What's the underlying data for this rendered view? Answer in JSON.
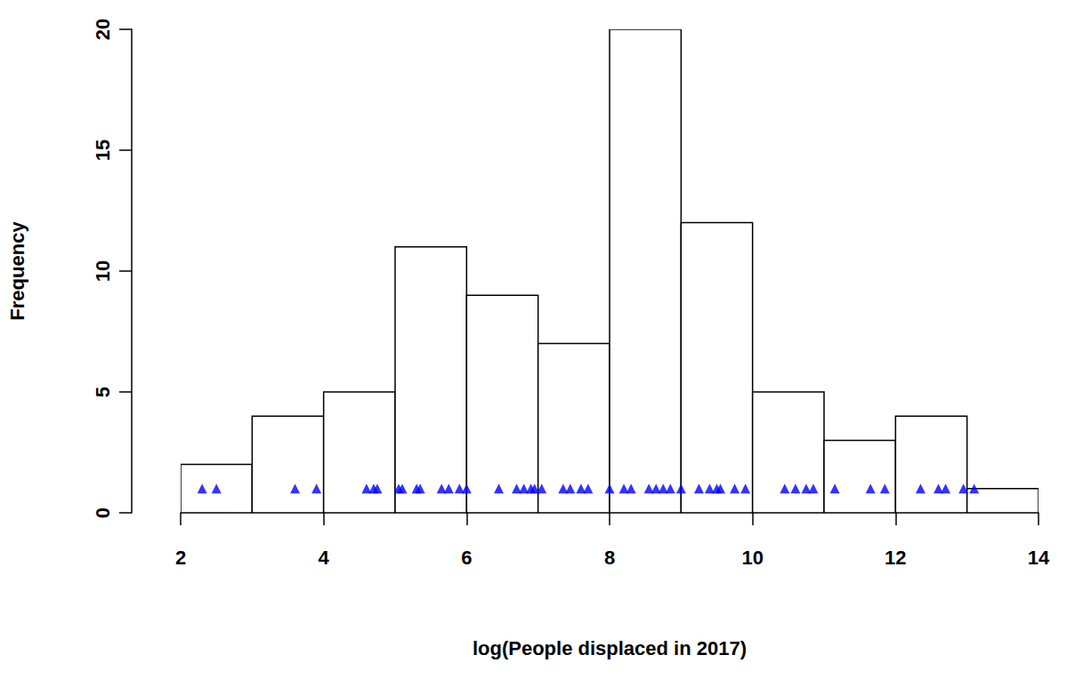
{
  "chart_data": {
    "type": "histogram",
    "x_label": "log(People displaced in 2017)",
    "y_label": "Frequency",
    "bins": [
      2,
      3,
      4,
      5,
      6,
      7,
      8,
      9,
      10,
      11,
      12,
      13,
      14
    ],
    "counts": [
      2,
      4,
      5,
      11,
      9,
      7,
      20,
      12,
      5,
      3,
      4,
      1
    ],
    "color": "#ffffff",
    "xlim": [
      2,
      14
    ],
    "xticks": [
      2,
      4,
      6,
      8,
      10,
      12,
      14
    ],
    "ylim": [
      0,
      20
    ],
    "yticks": [
      0,
      5,
      10,
      15,
      20
    ],
    "grid": false,
    "series": [
      {
        "type": "scatter",
        "marker": "triangle",
        "color": "#0000ff",
        "x": [
          2.3,
          2.5,
          3.6,
          3.9,
          4.6,
          4.7,
          4.75,
          5.05,
          5.1,
          5.3,
          5.35,
          5.65,
          5.75,
          5.9,
          6.0,
          6.45,
          6.7,
          6.8,
          6.9,
          6.95,
          7.05,
          7.35,
          7.45,
          7.6,
          7.7,
          8.0,
          8.2,
          8.3,
          8.55,
          8.65,
          8.75,
          8.85,
          9.0,
          9.25,
          9.4,
          9.5,
          9.55,
          9.75,
          9.9,
          10.45,
          10.6,
          10.75,
          10.85,
          11.15,
          11.65,
          11.85,
          12.35,
          12.6,
          12.7,
          12.95,
          13.1
        ],
        "y": [
          1,
          1,
          1,
          1,
          1,
          1,
          1,
          1,
          1,
          1,
          1,
          1,
          1,
          1,
          1,
          1,
          1,
          1,
          1,
          1,
          1,
          1,
          1,
          1,
          1,
          1,
          1,
          1,
          1,
          1,
          1,
          1,
          1,
          1,
          1,
          1,
          1,
          1,
          1,
          1,
          1,
          1,
          1,
          1,
          1,
          1,
          1,
          1,
          1,
          1,
          1
        ]
      }
    ]
  }
}
